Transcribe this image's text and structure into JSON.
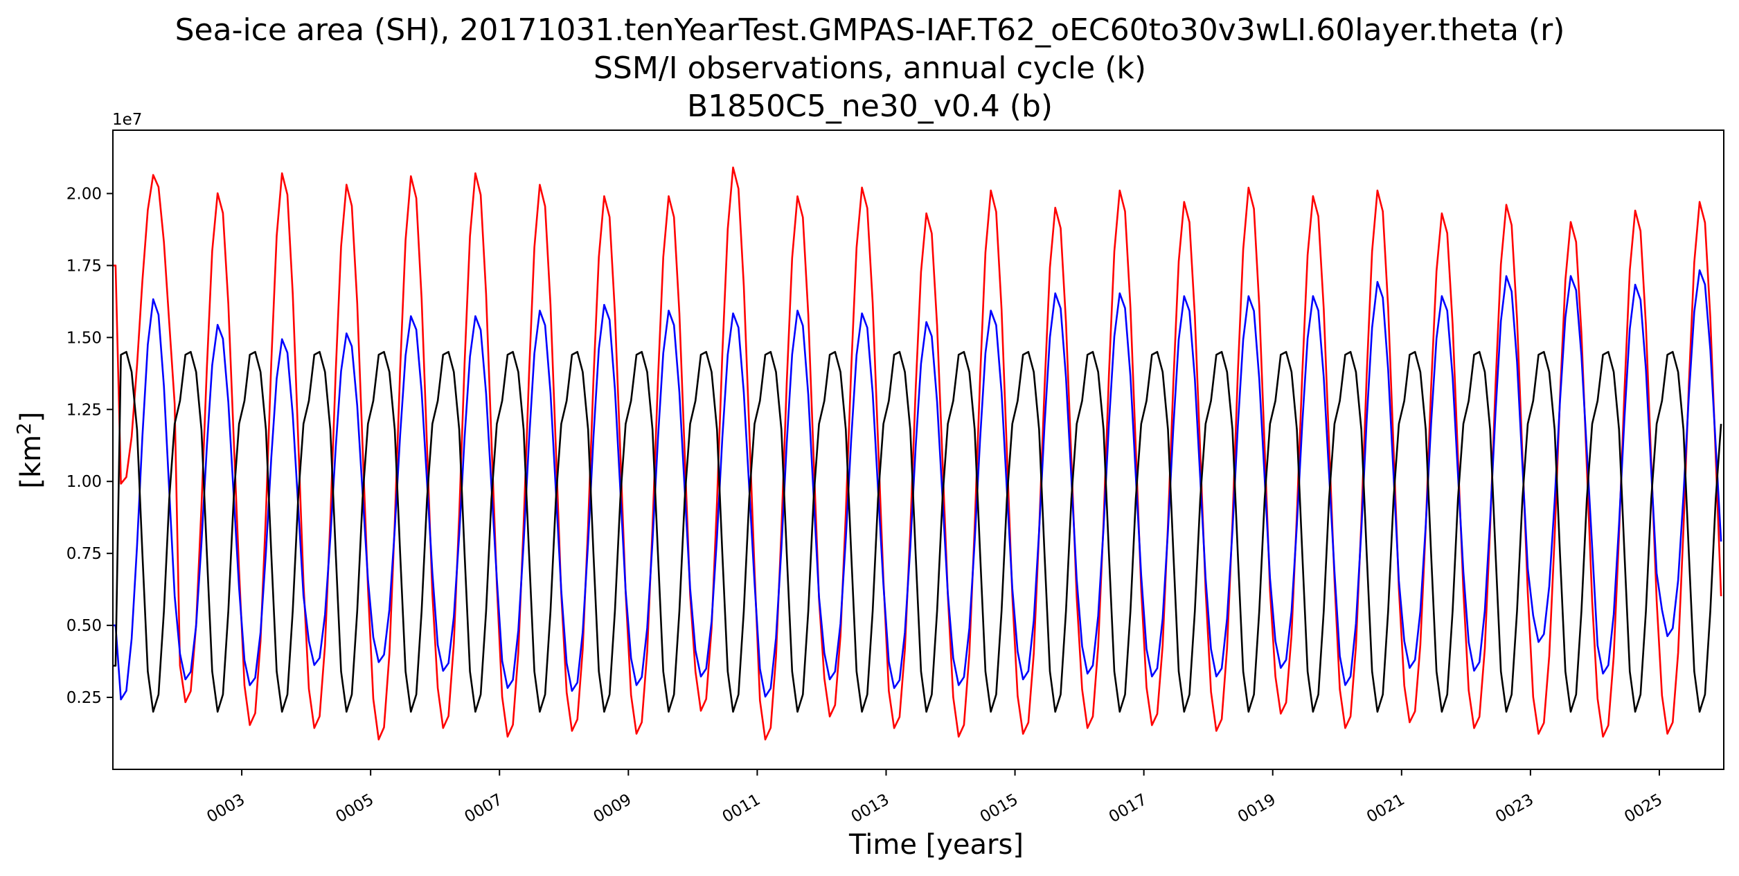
{
  "chart_data": {
    "type": "line",
    "title_lines": [
      "Sea-ice area (SH), 20171031.tenYearTest.GMPAS-IAF.T62_oEC60to30v3wLI.60layer.theta (r)",
      "SSM/I observations, annual cycle (k)",
      "B1850C5_ne30_v0.4 (b)"
    ],
    "xlabel": "Time [years]",
    "ylabel": "[km",
    "ylabel_sup": "2",
    "ylabel_end": "]",
    "y_offset_label": "1e7",
    "xlim": [
      1.0,
      26.0
    ],
    "ylim": [
      0.0,
      2.22
    ],
    "yticks": [
      {
        "value": 0.25,
        "label": "0.25"
      },
      {
        "value": 0.5,
        "label": "0.50"
      },
      {
        "value": 0.75,
        "label": "0.75"
      },
      {
        "value": 1.0,
        "label": "1.00"
      },
      {
        "value": 1.25,
        "label": "1.25"
      },
      {
        "value": 1.5,
        "label": "1.50"
      },
      {
        "value": 1.75,
        "label": "1.75"
      },
      {
        "value": 2.0,
        "label": "2.00"
      }
    ],
    "xticks": [
      {
        "value": 3,
        "label": "0003"
      },
      {
        "value": 5,
        "label": "0005"
      },
      {
        "value": 7,
        "label": "0007"
      },
      {
        "value": 9,
        "label": "0009"
      },
      {
        "value": 11,
        "label": "0011"
      },
      {
        "value": 13,
        "label": "0013"
      },
      {
        "value": 15,
        "label": "0015"
      },
      {
        "value": 17,
        "label": "0017"
      },
      {
        "value": 19,
        "label": "0019"
      },
      {
        "value": 21,
        "label": "0021"
      },
      {
        "value": 23,
        "label": "0023"
      },
      {
        "value": 25,
        "label": "0025"
      }
    ],
    "grid": false,
    "legend": "none",
    "series": [
      {
        "color": "#ff0000",
        "description": "monthly values, one annual cycle per year (years 1-25, x = year + (month-0.5)/12)",
        "max_by_year": [
          0.0,
          2.07,
          2.01,
          2.08,
          2.04,
          2.07,
          2.08,
          2.04,
          2.0,
          2.0,
          2.1,
          2.0,
          2.03,
          1.94,
          2.02,
          1.96,
          2.02,
          1.98,
          2.03,
          2.0,
          2.02,
          1.94,
          1.97,
          1.91,
          1.95,
          1.98
        ],
        "min_by_year": [
          0.0,
          0.99,
          0.23,
          0.15,
          0.14,
          0.1,
          0.14,
          0.11,
          0.13,
          0.12,
          0.2,
          0.1,
          0.18,
          0.14,
          0.11,
          0.12,
          0.14,
          0.15,
          0.13,
          0.19,
          0.14,
          0.16,
          0.14,
          0.12,
          0.11,
          0.12
        ],
        "first_value": 1.75
      },
      {
        "color": "#0000ff",
        "description": "monthly values, one annual cycle per year",
        "max_by_year": [
          0.0,
          1.64,
          1.55,
          1.5,
          1.52,
          1.58,
          1.58,
          1.6,
          1.62,
          1.6,
          1.59,
          1.6,
          1.59,
          1.56,
          1.6,
          1.66,
          1.66,
          1.65,
          1.65,
          1.65,
          1.7,
          1.65,
          1.72,
          1.72,
          1.69,
          1.74
        ],
        "min_by_year": [
          0.0,
          0.24,
          0.31,
          0.29,
          0.36,
          0.37,
          0.34,
          0.28,
          0.27,
          0.29,
          0.32,
          0.25,
          0.31,
          0.28,
          0.29,
          0.31,
          0.33,
          0.32,
          0.32,
          0.35,
          0.29,
          0.35,
          0.34,
          0.44,
          0.33,
          0.46
        ],
        "first_value": 0.5
      },
      {
        "color": "#000000",
        "description": "SSM/I annual cycle repeated every year",
        "monthly_climatology": [
          1.28,
          1.44,
          1.45,
          1.38,
          1.18,
          0.75,
          0.34,
          0.2,
          0.26,
          0.55,
          0.94,
          1.2
        ],
        "first_value": 0.36
      }
    ]
  }
}
